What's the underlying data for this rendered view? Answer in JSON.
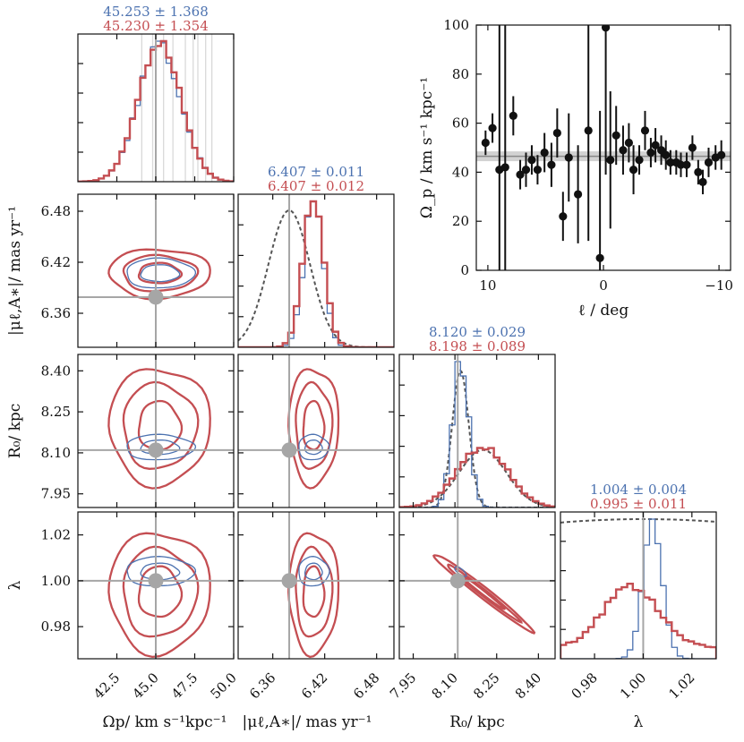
{
  "colors": {
    "blue": "#4c72b0",
    "red": "#c44e52",
    "gray": "#a6a6a6",
    "dashed": "#555555",
    "black": "#111111"
  },
  "chart_data": {
    "type": "corner",
    "parameters": [
      "Omega_p",
      "mu_lA",
      "R0",
      "lambda"
    ],
    "axis_labels": {
      "Omega_p": "Ω_p / km s⁻¹ kpc⁻¹",
      "mu_lA": "|μ_{ℓ,A*}| / mas yr⁻¹",
      "R0": "R₀ / kpc",
      "lambda": "λ"
    },
    "xlabels": [
      "Ωp/ km s⁻¹kpc⁻¹",
      "|μℓ,A∗|/ mas yr⁻¹",
      "R₀/ kpc",
      "λ"
    ],
    "ylabels": [
      "|μℓ,A∗|/ mas yr⁻¹",
      "R₀/ kpc",
      "λ"
    ],
    "ranges": {
      "Omega_p": [
        40.0,
        50.0
      ],
      "mu_lA": [
        6.32,
        6.5
      ],
      "R0": [
        7.9,
        8.46
      ],
      "lambda": [
        0.966,
        1.03
      ]
    },
    "ticks": {
      "Omega_p": [
        "42.5",
        "45.0",
        "47.5",
        "50.0"
      ],
      "mu_lA": [
        "6.36",
        "6.42",
        "6.48"
      ],
      "R0": [
        "7.95",
        "8.10",
        "8.25",
        "8.40"
      ],
      "lambda": [
        "0.98",
        "1.00",
        "1.02"
      ]
    },
    "tick_values": {
      "Omega_p": [
        42.5,
        45.0,
        47.5,
        50.0
      ],
      "mu_lA": [
        6.36,
        6.42,
        6.48
      ],
      "R0": [
        7.95,
        8.1,
        8.25,
        8.4
      ],
      "lambda": [
        0.98,
        1.0,
        1.02
      ]
    },
    "truths": {
      "Omega_p": 45.0,
      "mu_lA": 6.379,
      "R0": 8.11,
      "lambda": 1.0
    },
    "results": {
      "blue": {
        "Omega_p": [
          "45.253",
          "1.368"
        ],
        "mu_lA": [
          "6.407",
          "0.011"
        ],
        "R0": [
          "8.120",
          "0.029"
        ],
        "lambda": [
          "1.004",
          "0.004"
        ]
      },
      "red": {
        "Omega_p": [
          "45.230",
          "1.354"
        ],
        "mu_lA": [
          "6.407",
          "0.012"
        ],
        "R0": [
          "8.198",
          "0.089"
        ],
        "lambda": [
          "0.995",
          "0.011"
        ]
      }
    },
    "marginals": {
      "Omega_p": {
        "blue": {
          "mean": 45.253,
          "sd": 1.368
        },
        "red": {
          "mean": 45.23,
          "sd": 1.354
        }
      },
      "mu_lA": {
        "blue": {
          "mean": 6.407,
          "sd": 0.011
        },
        "red": {
          "mean": 6.407,
          "sd": 0.012
        },
        "prior": {
          "mean": 6.379,
          "sd": 0.024
        }
      },
      "R0": {
        "blue": {
          "mean": 8.12,
          "sd": 0.029
        },
        "red": {
          "mean": 8.198,
          "sd": 0.089
        },
        "prior_blue": {
          "mean": 8.12,
          "sd": 0.03
        },
        "prior_red": {
          "mean": 8.2,
          "sd": 0.085
        }
      },
      "lambda": {
        "blue": {
          "mean": 1.004,
          "sd": 0.004
        },
        "red": {
          "mean": 0.995,
          "sd": 0.011
        }
      }
    },
    "omega_gray_lines": [
      44.1,
      44.8,
      45.5,
      46.1,
      46.9,
      47.4,
      47.7,
      48.2,
      48.6
    ],
    "inset": {
      "type": "scatter",
      "xlabel": "ℓ / deg",
      "ylabel": "Ω_p / km s⁻¹ kpc⁻¹",
      "xlim": [
        11,
        -11
      ],
      "ylim": [
        0,
        100
      ],
      "xticks": [
        "10",
        "0",
        "−10"
      ],
      "xtick_values": [
        10,
        0,
        -10
      ],
      "yticks": [
        "0",
        "20",
        "40",
        "60",
        "80",
        "100"
      ],
      "ytick_values": [
        0,
        20,
        40,
        60,
        80,
        100
      ],
      "band": {
        "center": 46.5,
        "half_width": 2.0
      },
      "points": [
        [
          10.2,
          52,
          5
        ],
        [
          9.6,
          58,
          6
        ],
        [
          9.0,
          41,
          60
        ],
        [
          8.5,
          42,
          62
        ],
        [
          7.8,
          63,
          8
        ],
        [
          7.2,
          39,
          6
        ],
        [
          6.7,
          41,
          7
        ],
        [
          6.2,
          45,
          6
        ],
        [
          5.7,
          41,
          6
        ],
        [
          5.1,
          48,
          8
        ],
        [
          4.5,
          43,
          9
        ],
        [
          4.0,
          56,
          10
        ],
        [
          3.5,
          22,
          10
        ],
        [
          3.0,
          46,
          18
        ],
        [
          2.2,
          31,
          20
        ],
        [
          1.3,
          57,
          45
        ],
        [
          0.3,
          5,
          60
        ],
        [
          -0.2,
          99,
          60
        ],
        [
          -0.6,
          45,
          28
        ],
        [
          -1.1,
          55,
          12
        ],
        [
          -1.7,
          49,
          10
        ],
        [
          -2.2,
          52,
          8
        ],
        [
          -2.6,
          41,
          10
        ],
        [
          -3.1,
          45,
          6
        ],
        [
          -3.6,
          57,
          8
        ],
        [
          -4.1,
          48,
          6
        ],
        [
          -4.5,
          51,
          7
        ],
        [
          -5.0,
          49,
          6
        ],
        [
          -5.4,
          47,
          6
        ],
        [
          -5.8,
          44,
          5
        ],
        [
          -6.3,
          44,
          5
        ],
        [
          -6.7,
          43,
          5
        ],
        [
          -7.2,
          43,
          5
        ],
        [
          -7.7,
          50,
          5
        ],
        [
          -8.2,
          40,
          5
        ],
        [
          -8.6,
          36,
          5
        ],
        [
          -9.1,
          44,
          6
        ],
        [
          -9.7,
          46,
          5
        ],
        [
          -10.2,
          47,
          6
        ]
      ]
    }
  }
}
